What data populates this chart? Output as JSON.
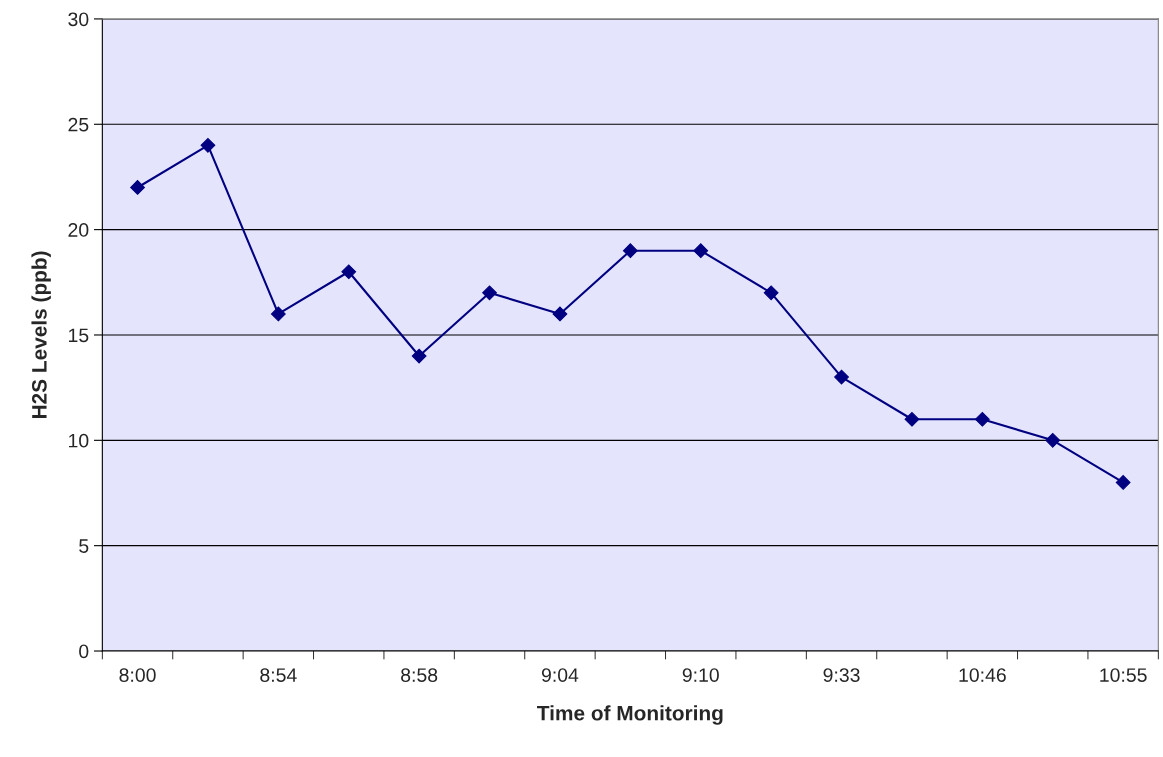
{
  "chart_data": {
    "type": "line",
    "xlabel": "Time of Monitoring",
    "ylabel": "H2S Levels (ppb)",
    "categories": [
      "8:00",
      null,
      "8:54",
      null,
      "8:58",
      null,
      "9:04",
      null,
      "9:10",
      null,
      "9:33",
      null,
      "10:46",
      null,
      "10:55"
    ],
    "series": [
      {
        "color": "#000080",
        "values": [
          22,
          24,
          16,
          18,
          14,
          17,
          16,
          19,
          19,
          17,
          13,
          11,
          11,
          10,
          8
        ]
      }
    ],
    "ylim": [
      0,
      30
    ],
    "yticks": [
      0,
      5,
      10,
      15,
      20,
      25,
      30
    ],
    "grid": "y",
    "marker": "diamond",
    "line_style": "solid",
    "legend": false
  }
}
